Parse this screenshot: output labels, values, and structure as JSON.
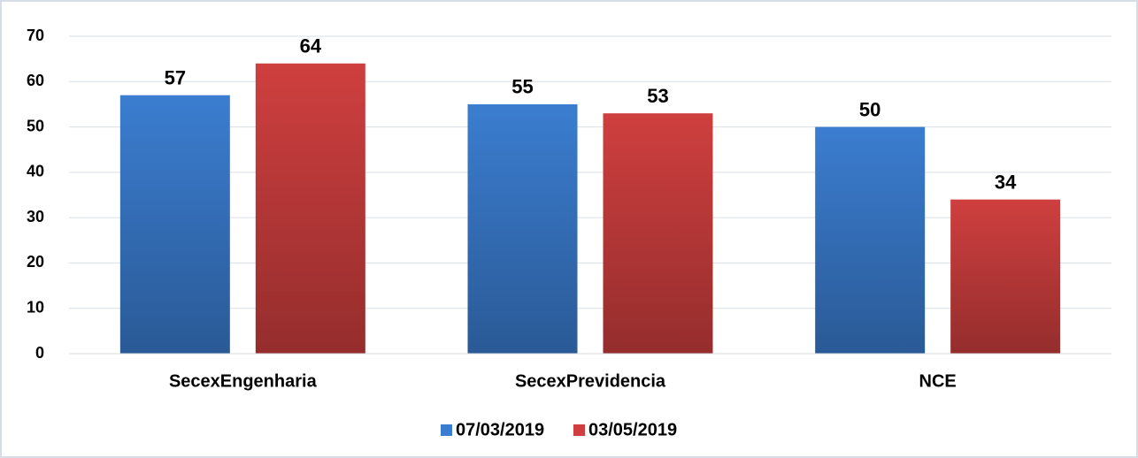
{
  "chart_data": {
    "type": "bar",
    "categories": [
      "SecexEngenharia",
      "SecexPrevidencia",
      "NCE"
    ],
    "series": [
      {
        "name": "07/03/2019",
        "color": "#3b7dd0",
        "values": [
          57,
          55,
          50
        ]
      },
      {
        "name": "03/05/2019",
        "color": "#cf3f3f",
        "values": [
          64,
          53,
          34
        ]
      }
    ],
    "ylim": [
      0,
      70
    ],
    "yticks": [
      0,
      10,
      20,
      30,
      40,
      50,
      60,
      70
    ],
    "grid": true,
    "legend": "bottom"
  }
}
